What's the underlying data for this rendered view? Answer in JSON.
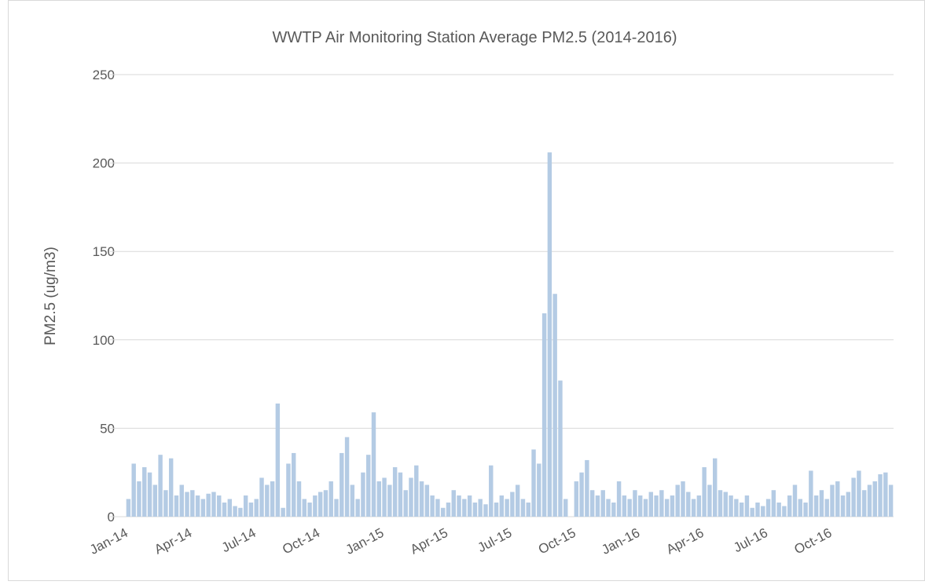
{
  "chart_data": {
    "type": "bar",
    "title": "WWTP Air Monitoring Station Average PM2.5 (2014-2016)",
    "y_label": "PM2.5 (ug/m3)",
    "color": "#b4cbe4",
    "ylim": [
      0,
      250
    ],
    "yticks": [
      0,
      50,
      100,
      150,
      200,
      250
    ],
    "grid": true,
    "categories": [
      "Jan-14",
      null,
      null,
      null,
      null,
      null,
      null,
      null,
      null,
      null,
      null,
      null,
      "Apr-14",
      null,
      null,
      null,
      null,
      null,
      null,
      null,
      null,
      null,
      null,
      null,
      "Jul-14",
      null,
      null,
      null,
      null,
      null,
      null,
      null,
      null,
      null,
      null,
      null,
      "Oct-14",
      null,
      null,
      null,
      null,
      null,
      null,
      null,
      null,
      null,
      null,
      null,
      "Jan-15",
      null,
      null,
      null,
      null,
      null,
      null,
      null,
      null,
      null,
      null,
      null,
      "Apr-15",
      null,
      null,
      null,
      null,
      null,
      null,
      null,
      null,
      null,
      null,
      null,
      "Jul-15",
      null,
      null,
      null,
      null,
      null,
      null,
      null,
      null,
      null,
      null,
      null,
      "Oct-15",
      null,
      null,
      null,
      null,
      null,
      null,
      null,
      null,
      null,
      null,
      null,
      "Jan-16",
      null,
      null,
      null,
      null,
      null,
      null,
      null,
      null,
      null,
      null,
      null,
      "Apr-16",
      null,
      null,
      null,
      null,
      null,
      null,
      null,
      null,
      null,
      null,
      null,
      "Jul-16",
      null,
      null,
      null,
      null,
      null,
      null,
      null,
      null,
      null,
      null,
      null,
      "Oct-16",
      null,
      null,
      null,
      null,
      null,
      null,
      null,
      null,
      null,
      null,
      null
    ],
    "values": [
      10,
      30,
      20,
      28,
      25,
      18,
      35,
      15,
      33,
      12,
      18,
      14,
      15,
      12,
      10,
      13,
      14,
      12,
      8,
      10,
      6,
      5,
      12,
      8,
      10,
      22,
      18,
      20,
      64,
      5,
      30,
      36,
      20,
      10,
      8,
      12,
      14,
      15,
      20,
      10,
      36,
      45,
      18,
      10,
      25,
      35,
      59,
      20,
      22,
      18,
      28,
      25,
      15,
      22,
      29,
      20,
      18,
      12,
      10,
      5,
      8,
      15,
      12,
      10,
      12,
      8,
      10,
      7,
      29,
      8,
      12,
      10,
      14,
      18,
      10,
      8,
      38,
      30,
      115,
      206,
      126,
      77,
      10,
      null,
      20,
      25,
      32,
      15,
      12,
      15,
      10,
      8,
      20,
      12,
      10,
      15,
      12,
      10,
      14,
      12,
      15,
      10,
      12,
      18,
      20,
      14,
      10,
      12,
      28,
      18,
      33,
      15,
      14,
      12,
      10,
      8,
      12,
      5,
      8,
      6,
      10,
      15,
      8,
      6,
      12,
      18,
      10,
      8,
      26,
      12,
      15,
      10,
      18,
      20,
      12,
      14,
      22,
      26,
      15,
      18,
      20,
      24,
      25,
      18
    ]
  }
}
